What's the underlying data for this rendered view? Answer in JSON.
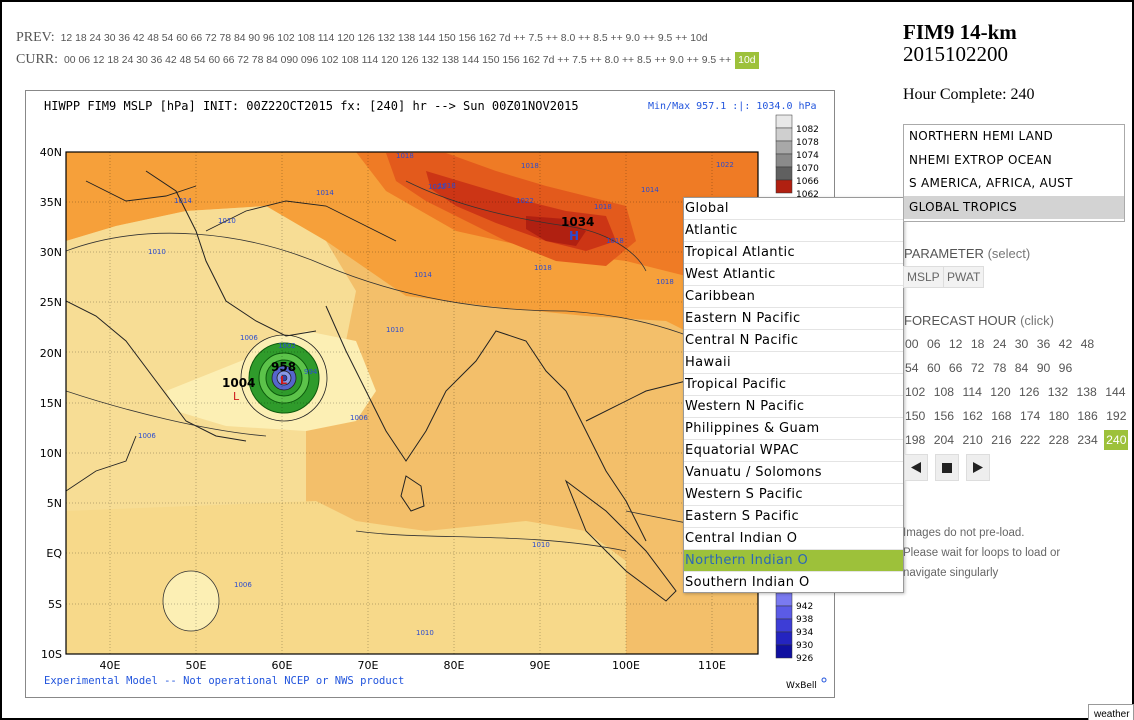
{
  "runs": {
    "prev_label": "PREV:",
    "prev_hours": "12 18 24 30 36 42 48 54 60 66 72 78 84 90 96 102 108 114 120 126 132 138 144 150 156 162 7d   ++   7.5 ++ 8.0 ++ 8.5 ++ 9.0 ++ 9.5 ++ 10d",
    "curr_label": "CURR:",
    "curr_hours": "00 06 12 18 24 30 36 42 48 54 60 66 72 78 84 090 096 102 108 114 120 126 132 138 144 150 156 162 7d  ++ 7.5 ++ 8.0 ++ 8.5 ++ 9.0 ++ 9.5  ++",
    "curr_selected": "10d"
  },
  "map": {
    "header": "HIWPP FIM9 MSLP [hPa] INIT: 00Z22OCT2015 fx: [240] hr --> Sun 00Z01NOV2015",
    "minmax": "Min/Max 957.1 :|: 1034.0 hPa",
    "footer": "Experimental Model -- Not operational NCEP or NWS product",
    "brand": "WxBell",
    "lat_labels": [
      "40N",
      "35N",
      "30N",
      "25N",
      "20N",
      "15N",
      "10N",
      "5N",
      "EQ",
      "5S",
      "10S"
    ],
    "lon_labels": [
      "40E",
      "50E",
      "60E",
      "70E",
      "80E",
      "90E",
      "100E",
      "110E"
    ],
    "colorbar_top": [
      "1082",
      "1078",
      "1074",
      "1070",
      "1066",
      "1062"
    ],
    "colorbar_bottom": [
      "942",
      "938",
      "934",
      "930",
      "926"
    ],
    "high_label": "1034",
    "high_marker": "H",
    "low_label": "958",
    "low_marker": "L",
    "low2_label": "1004",
    "low2_marker": "L",
    "isobar_labels": [
      {
        "text": "1018",
        "pos": "kashmir"
      },
      {
        "text": "1022",
        "pos": "kashmir-2"
      },
      {
        "text": "1014",
        "pos": "tibet-w"
      },
      {
        "text": "1018",
        "pos": "tibet-c"
      },
      {
        "text": "1018",
        "pos": "tibet-n"
      },
      {
        "text": "1022",
        "pos": "china-n"
      },
      {
        "text": "1018",
        "pos": "china-e"
      },
      {
        "text": "1014",
        "pos": "afghan"
      },
      {
        "text": "1014",
        "pos": "caspian"
      },
      {
        "text": "1010",
        "pos": "iraq"
      },
      {
        "text": "1010",
        "pos": "arabia-n"
      },
      {
        "text": "1014",
        "pos": "india-n"
      },
      {
        "text": "1018",
        "pos": "burma"
      },
      {
        "text": "1010",
        "pos": "india-w"
      },
      {
        "text": "1006",
        "pos": "yemen"
      },
      {
        "text": "1006",
        "pos": "horn"
      },
      {
        "text": "1006",
        "pos": "bengal"
      },
      {
        "text": "1010",
        "pos": "sumatra"
      },
      {
        "text": "1006",
        "pos": "southern"
      },
      {
        "text": "1010",
        "pos": "south-c"
      },
      {
        "text": "1002",
        "pos": "cyclone"
      },
      {
        "text": "994",
        "pos": "cyclone-e"
      },
      {
        "text": "1022",
        "pos": "upper"
      },
      {
        "text": "1018",
        "pos": "upper-2"
      },
      {
        "text": "1018",
        "pos": "upper-3"
      }
    ]
  },
  "regions": [
    "Global",
    "Atlantic",
    "Tropical Atlantic",
    "West Atlantic",
    "Caribbean",
    "Eastern N Pacific",
    "Central N Pacific",
    "Hawaii",
    "Tropical Pacific",
    "Western N Pacific",
    "Philippines & Guam",
    "Equatorial WPAC",
    "Vanuatu / Solomons",
    "Western S Pacific",
    "Eastern S Pacific",
    "Central Indian O",
    "Northern Indian O",
    "Southern Indian O"
  ],
  "regions_selected_index": 16,
  "side": {
    "title": "FIM9 14-km",
    "run": "2015102200",
    "hour_complete": "Hour Complete: 240",
    "domains": [
      "NORTHERN HEMI LAND",
      "NHEMI EXTROP OCEAN",
      "S AMERICA, AFRICA, AUST",
      "GLOBAL TROPICS"
    ],
    "domains_selected_index": 3,
    "param_title": "PARAMETER",
    "param_sub": "(select)",
    "params": [
      "MSLP",
      "PWAT"
    ],
    "fh_title": "FORECAST HOUR",
    "fh_sub": "(click)",
    "forecast_hours": [
      [
        "00",
        "06",
        "12",
        "18",
        "24",
        "30",
        "36",
        "42",
        "48"
      ],
      [
        "54",
        "60",
        "66",
        "72",
        "78",
        "84",
        "90",
        "96"
      ],
      [
        "102",
        "108",
        "114",
        "120",
        "126",
        "132",
        "138",
        "144"
      ],
      [
        "150",
        "156",
        "162",
        "168",
        "174",
        "180",
        "186",
        "192"
      ],
      [
        "198",
        "204",
        "210",
        "216",
        "222",
        "228",
        "234",
        "240"
      ]
    ],
    "fh_selected": "240",
    "controls": [
      "prev-icon",
      "stop-icon",
      "next-icon"
    ],
    "note1": "Images do not pre-load.",
    "note2": "Please wait for loops to load or",
    "note3": "navigate singularly"
  },
  "corner_tab": "weather",
  "colors": {
    "accent_green": "#9dc13a",
    "link_blue": "#2b67b8",
    "contour_blue": "#3a5cc8"
  }
}
